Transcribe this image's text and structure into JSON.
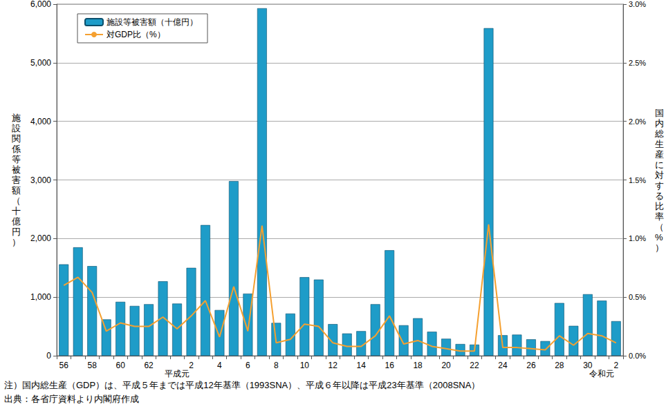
{
  "chart_data": {
    "type": "bar",
    "categories": [
      "56",
      null,
      "58",
      null,
      "60",
      null,
      "62",
      null,
      "平成元",
      "2",
      null,
      "4",
      null,
      "6",
      null,
      "8",
      null,
      "10",
      null,
      "12",
      null,
      "14",
      null,
      "16",
      null,
      "18",
      null,
      "20",
      null,
      "22",
      null,
      "24",
      null,
      "26",
      null,
      "28",
      null,
      "30",
      "令和元",
      "2"
    ],
    "series": [
      {
        "name": "施設等被害額（十億円）",
        "type": "bar",
        "color": "#1e9cc8",
        "values": [
          1560,
          1850,
          1530,
          620,
          920,
          850,
          880,
          1270,
          890,
          1500,
          2230,
          780,
          2980,
          1060,
          5930,
          560,
          720,
          1340,
          1300,
          540,
          380,
          420,
          880,
          1800,
          520,
          640,
          410,
          290,
          200,
          190,
          5590,
          350,
          360,
          280,
          250,
          900,
          510,
          1050,
          940,
          590
        ]
      },
      {
        "name": "対GDP比（%）",
        "type": "line",
        "color": "#f5a030",
        "axis": "y2",
        "values": [
          0.6,
          0.67,
          0.54,
          0.21,
          0.28,
          0.25,
          0.25,
          0.33,
          0.23,
          0.34,
          0.47,
          0.16,
          0.59,
          0.21,
          1.11,
          0.11,
          0.14,
          0.27,
          0.25,
          0.11,
          0.08,
          0.08,
          0.17,
          0.34,
          0.1,
          0.13,
          0.08,
          0.06,
          0.04,
          0.04,
          1.12,
          0.07,
          0.07,
          0.06,
          0.05,
          0.17,
          0.09,
          0.19,
          0.17,
          0.11
        ]
      }
    ],
    "y_label": "施設関係等被害額（十億円）",
    "y2_label": "国内総生産に対する比率（%）",
    "ylim": [
      0,
      6000
    ],
    "yticks": [
      0,
      {
        "value": 1000,
        "label": "1,000"
      },
      {
        "value": 2000,
        "label": "2,000"
      },
      {
        "value": 3000,
        "label": "3,000"
      },
      {
        "value": 4000,
        "label": "4,000"
      },
      {
        "value": 5000,
        "label": "5,000"
      },
      {
        "value": 6000,
        "label": "6,000"
      }
    ],
    "y2lim": [
      0,
      3.0
    ],
    "y2ticks": [
      {
        "value": 0,
        "label": "0.0%"
      },
      {
        "value": 0.5,
        "label": "0.5%"
      },
      {
        "value": 1.0,
        "label": "1.0%"
      },
      {
        "value": 1.5,
        "label": "1.5%"
      },
      {
        "value": 2.0,
        "label": "2.0%"
      },
      {
        "value": 2.5,
        "label": "2.5%"
      },
      {
        "value": 3.0,
        "label": "3.0%"
      }
    ],
    "grid": true,
    "legend": "upper left",
    "annotations": [
      "注）国内総生産（GDP）は、平成５年までは平成12年基準（1993SNA）、平成６年以降は平成23年基準（2008SNA）",
      "出典：各省庁資料より内閣府作成"
    ]
  }
}
